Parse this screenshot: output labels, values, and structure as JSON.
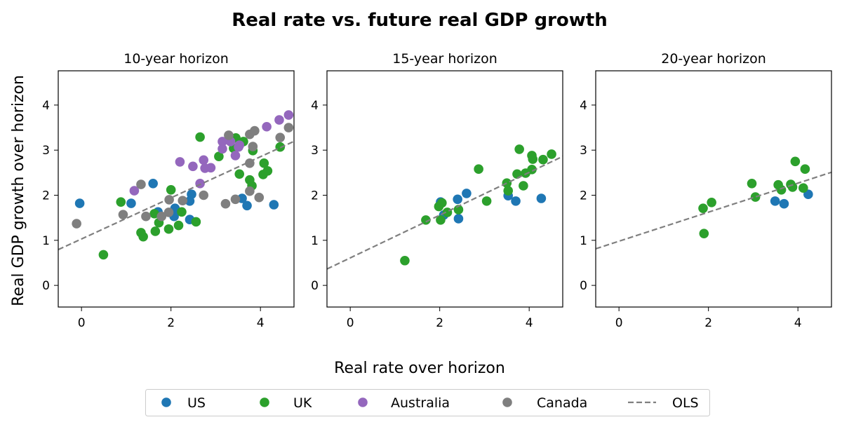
{
  "chart_data": {
    "type": "scatter",
    "title": "Real rate vs. future real GDP growth",
    "xlabel": "Real rate over horizon",
    "ylabel": "Real GDP growth over horizon",
    "xlim": [
      -0.52,
      4.75
    ],
    "ylim": [
      -0.48,
      4.76
    ],
    "xticks": [
      "0",
      "2",
      "4"
    ],
    "yticks": [
      "0",
      "1",
      "2",
      "3",
      "4"
    ],
    "legend": {
      "placement": "bottom-center",
      "entries": [
        {
          "label": "US",
          "color": "#1f77b4",
          "kind": "marker"
        },
        {
          "label": "UK",
          "color": "#2ca02c",
          "kind": "marker"
        },
        {
          "label": "Australia",
          "color": "#9467bd",
          "kind": "marker"
        },
        {
          "label": "Canada",
          "color": "#7f7f7f",
          "kind": "marker"
        },
        {
          "label": "OLS",
          "color": "#7f7f7f",
          "kind": "dashed-line"
        }
      ]
    },
    "panels": [
      {
        "title": "10-year horizon",
        "ols": {
          "slope": 0.456,
          "intercept": 1.03
        },
        "series": [
          {
            "name": "US",
            "color": "#1f77b4",
            "points": [
              [
                -0.04,
                1.82
              ],
              [
                1.11,
                1.82
              ],
              [
                1.6,
                2.26
              ],
              [
                2.46,
                2.02
              ],
              [
                2.42,
                1.87
              ],
              [
                2.09,
                1.71
              ],
              [
                1.71,
                1.63
              ],
              [
                2.07,
                1.53
              ],
              [
                2.42,
                1.46
              ],
              [
                3.59,
                1.93
              ],
              [
                3.7,
                1.77
              ],
              [
                4.3,
                1.79
              ]
            ]
          },
          {
            "name": "UK",
            "color": "#2ca02c",
            "points": [
              [
                0.49,
                0.68
              ],
              [
                0.88,
                1.85
              ],
              [
                1.33,
                1.17
              ],
              [
                1.38,
                1.08
              ],
              [
                1.65,
                1.2
              ],
              [
                1.63,
                1.59
              ],
              [
                1.73,
                1.39
              ],
              [
                1.95,
                1.25
              ],
              [
                2.0,
                2.12
              ],
              [
                2.24,
                1.63
              ],
              [
                2.17,
                1.33
              ],
              [
                2.56,
                1.41
              ],
              [
                2.65,
                3.29
              ],
              [
                3.07,
                2.86
              ],
              [
                3.45,
                3.27
              ],
              [
                3.62,
                3.19
              ],
              [
                3.4,
                3.04
              ],
              [
                3.83,
                2.99
              ],
              [
                3.53,
                2.47
              ],
              [
                3.76,
                2.34
              ],
              [
                3.81,
                2.21
              ],
              [
                4.08,
                2.71
              ],
              [
                4.16,
                2.54
              ],
              [
                4.06,
                2.46
              ],
              [
                4.44,
                3.07
              ]
            ]
          },
          {
            "name": "Australia",
            "color": "#9467bd",
            "points": [
              [
                1.18,
                2.1
              ],
              [
                2.2,
                2.74
              ],
              [
                2.49,
                2.64
              ],
              [
                2.73,
                2.78
              ],
              [
                2.76,
                2.6
              ],
              [
                2.89,
                2.61
              ],
              [
                2.65,
                2.26
              ],
              [
                3.15,
                3.19
              ],
              [
                3.15,
                3.03
              ],
              [
                3.33,
                3.19
              ],
              [
                3.44,
                2.88
              ],
              [
                3.51,
                3.07
              ],
              [
                3.53,
                3.11
              ],
              [
                4.14,
                3.52
              ],
              [
                4.42,
                3.67
              ],
              [
                4.63,
                3.78
              ]
            ]
          },
          {
            "name": "Canada",
            "color": "#7f7f7f",
            "points": [
              [
                -0.11,
                1.37
              ],
              [
                0.93,
                1.57
              ],
              [
                1.33,
                2.24
              ],
              [
                1.44,
                1.53
              ],
              [
                1.79,
                1.53
              ],
              [
                1.95,
                1.62
              ],
              [
                1.96,
                1.9
              ],
              [
                2.26,
                1.88
              ],
              [
                2.73,
                2.0
              ],
              [
                3.22,
                1.81
              ],
              [
                3.29,
                3.33
              ],
              [
                3.44,
                1.91
              ],
              [
                3.76,
                3.35
              ],
              [
                3.87,
                3.43
              ],
              [
                3.83,
                3.08
              ],
              [
                3.76,
                2.71
              ],
              [
                3.76,
                2.09
              ],
              [
                3.97,
                1.95
              ],
              [
                4.44,
                3.28
              ],
              [
                4.63,
                3.5
              ]
            ]
          }
        ]
      },
      {
        "title": "15-year horizon",
        "ols": {
          "slope": 0.474,
          "intercept": 0.61
        },
        "series": [
          {
            "name": "US",
            "color": "#1f77b4",
            "points": [
              [
                2.02,
                1.85
              ],
              [
                2.4,
                1.91
              ],
              [
                2.6,
                2.04
              ],
              [
                2.42,
                1.48
              ],
              [
                2.09,
                1.56
              ],
              [
                3.53,
                1.99
              ],
              [
                3.7,
                1.87
              ],
              [
                4.27,
                1.93
              ]
            ]
          },
          {
            "name": "UK",
            "color": "#2ca02c",
            "points": [
              [
                1.22,
                0.55
              ],
              [
                1.69,
                1.45
              ],
              [
                2.02,
                1.45
              ],
              [
                2.05,
                1.83
              ],
              [
                1.98,
                1.75
              ],
              [
                2.17,
                1.62
              ],
              [
                2.42,
                1.68
              ],
              [
                2.87,
                2.58
              ],
              [
                3.05,
                1.87
              ],
              [
                3.5,
                2.27
              ],
              [
                3.53,
                2.1
              ],
              [
                3.78,
                3.02
              ],
              [
                3.73,
                2.47
              ],
              [
                3.87,
                2.21
              ],
              [
                3.92,
                2.49
              ],
              [
                4.06,
                2.57
              ],
              [
                4.06,
                2.88
              ],
              [
                4.08,
                2.8
              ],
              [
                4.31,
                2.79
              ],
              [
                4.5,
                2.91
              ]
            ]
          }
        ]
      },
      {
        "title": "20-year horizon",
        "ols": {
          "slope": 0.322,
          "intercept": 0.98
        },
        "series": [
          {
            "name": "US",
            "color": "#1f77b4",
            "points": [
              [
                3.49,
                1.87
              ],
              [
                3.69,
                1.81
              ],
              [
                4.23,
                2.02
              ]
            ]
          },
          {
            "name": "UK",
            "color": "#2ca02c",
            "points": [
              [
                1.88,
                1.71
              ],
              [
                2.07,
                1.84
              ],
              [
                1.9,
                1.15
              ],
              [
                2.97,
                2.26
              ],
              [
                3.05,
                1.96
              ],
              [
                3.56,
                2.23
              ],
              [
                3.63,
                2.12
              ],
              [
                3.84,
                2.24
              ],
              [
                3.88,
                2.18
              ],
              [
                3.94,
                2.75
              ],
              [
                4.16,
                2.58
              ],
              [
                4.12,
                2.16
              ]
            ]
          }
        ]
      }
    ]
  }
}
